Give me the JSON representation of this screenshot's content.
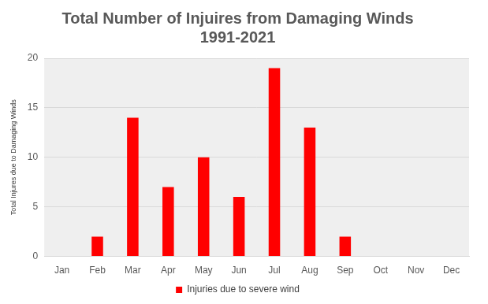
{
  "chart_data": {
    "type": "bar",
    "title": [
      "Total Number of Injuires from Damaging Winds",
      "1991-2021"
    ],
    "y_label": "Total Injures due to Damaging Winds",
    "categories": [
      "Jan",
      "Feb",
      "Mar",
      "Apr",
      "May",
      "Jun",
      "Jul",
      "Aug",
      "Sep",
      "Oct",
      "Nov",
      "Dec"
    ],
    "series": [
      {
        "name": "Injuries due to severe wind",
        "color": "#ff0000",
        "values": [
          0,
          2,
          14,
          7,
          10,
          6,
          19,
          13,
          2,
          0,
          0,
          0
        ]
      }
    ],
    "ylim": [
      0,
      20
    ],
    "yticks": [
      0,
      5,
      10,
      15,
      20
    ],
    "grid": true,
    "legend": "bottom"
  }
}
